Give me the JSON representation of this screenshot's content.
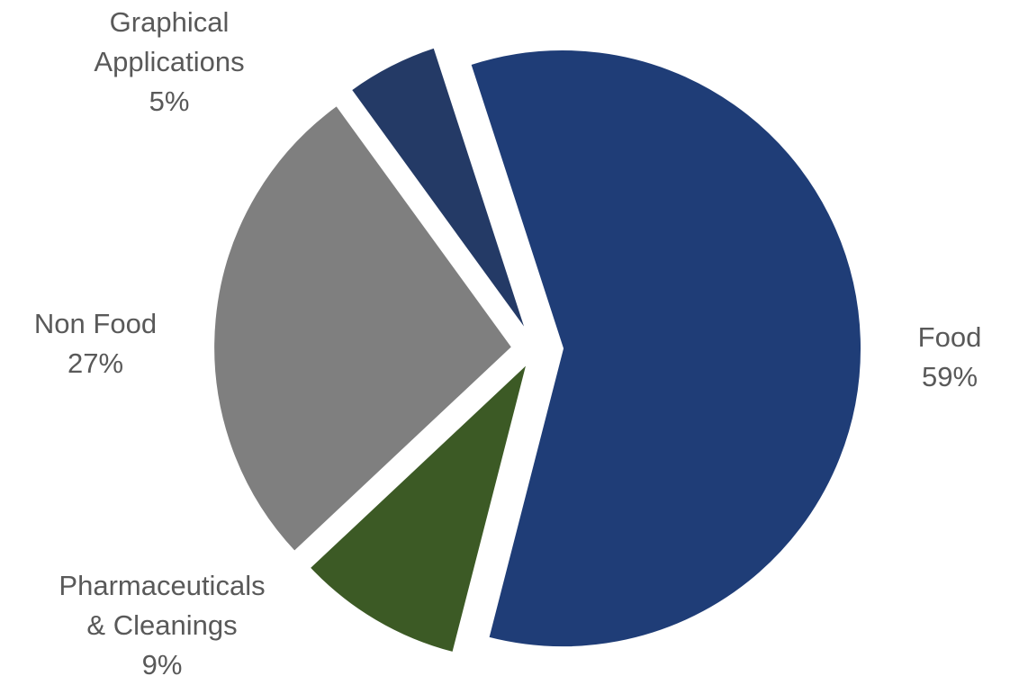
{
  "chart_data": {
    "type": "pie",
    "title": "",
    "slices": [
      {
        "name": "Food",
        "label_lines": [
          "Food",
          "59%"
        ],
        "value": 59,
        "color": "#1f3d77"
      },
      {
        "name": "Pharmaceuticals & Cleanings",
        "label_lines": [
          "Pharmaceuticals",
          "& Cleanings",
          "9%"
        ],
        "value": 9,
        "color": "#3c5a25"
      },
      {
        "name": "Non Food",
        "label_lines": [
          "Non Food",
          "27%"
        ],
        "value": 27,
        "color": "#7f7f7f"
      },
      {
        "name": "Graphical Applications",
        "label_lines": [
          "Graphical",
          "Applications",
          "5%"
        ],
        "value": 5,
        "color": "#243a66"
      }
    ],
    "legend": "none",
    "data_labels": "outside"
  }
}
